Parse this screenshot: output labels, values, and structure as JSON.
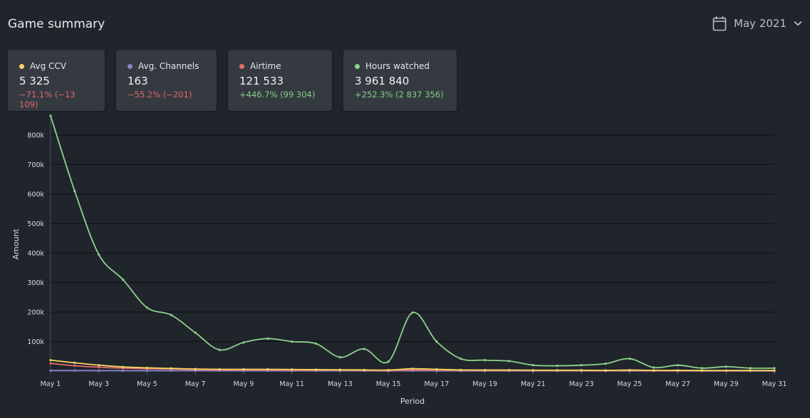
{
  "header": {
    "title": "Game summary",
    "period_label": "May 2021",
    "calendar_icon": "calendar-icon",
    "chevron_icon": "chevron-down-icon"
  },
  "cards": [
    {
      "label": "Avg CCV",
      "value": "5 325",
      "delta": "−71.1% (−13 109)",
      "color": "#f5d560",
      "trend": "neg"
    },
    {
      "label": "Avg. Channels",
      "value": "163",
      "delta": "−55.2% (−201)",
      "color": "#8c84cf",
      "trend": "neg"
    },
    {
      "label": "Airtime",
      "value": "121 533",
      "delta": "+446.7% (99 304)",
      "color": "#e66a6e",
      "trend": "pos"
    },
    {
      "label": "Hours watched",
      "value": "3 961 840",
      "delta": "+252.3% (2 837 356)",
      "color": "#8ed18b",
      "trend": "pos"
    }
  ],
  "chart_data": {
    "type": "line",
    "xlabel": "Period",
    "ylabel": "Amount",
    "ylim": [
      0,
      860000
    ],
    "y_ticks": [
      100000,
      200000,
      300000,
      400000,
      500000,
      600000,
      700000,
      800000
    ],
    "y_tick_labels": [
      "100k",
      "200k",
      "300k",
      "400k",
      "500k",
      "600k",
      "700k",
      "800k"
    ],
    "x": [
      "May 1",
      "May 2",
      "May 3",
      "May 4",
      "May 5",
      "May 6",
      "May 7",
      "May 8",
      "May 9",
      "May 10",
      "May 11",
      "May 12",
      "May 13",
      "May 14",
      "May 15",
      "May 16",
      "May 17",
      "May 18",
      "May 19",
      "May 20",
      "May 21",
      "May 22",
      "May 23",
      "May 24",
      "May 25",
      "May 26",
      "May 27",
      "May 28",
      "May 29",
      "May 30",
      "May 31"
    ],
    "x_tick_labels": [
      "May 1",
      "",
      "May 3",
      "",
      "May 5",
      "",
      "May 7",
      "",
      "May 9",
      "",
      "May 11",
      "",
      "May 13",
      "",
      "May 15",
      "",
      "May 17",
      "",
      "May 19",
      "",
      "May 21",
      "",
      "May 23",
      "",
      "May 25",
      "",
      "May 27",
      "",
      "May 29",
      "",
      "May 31"
    ],
    "grid": true,
    "series": [
      {
        "color": "#8ed18b",
        "values": [
          865000,
          610000,
          395000,
          310000,
          215000,
          190000,
          130000,
          72000,
          97000,
          110000,
          100000,
          93000,
          47000,
          75000,
          32000,
          198000,
          100000,
          42000,
          37000,
          34000,
          20000,
          18000,
          20000,
          25000,
          42000,
          12000,
          20000,
          10000,
          15000,
          10000,
          10000
        ]
      },
      {
        "color": "#f5d560",
        "values": [
          37000,
          28000,
          20000,
          14000,
          11000,
          9000,
          7000,
          6000,
          6000,
          6000,
          5500,
          5000,
          4500,
          4000,
          3500,
          8000,
          6000,
          4000,
          3500,
          3500,
          3000,
          3000,
          3000,
          2500,
          3500,
          2500,
          2500,
          2000,
          2000,
          2000,
          2000
        ]
      },
      {
        "color": "#e66a6e",
        "values": [
          26000,
          18000,
          13000,
          10000,
          8000,
          7000,
          5000,
          4000,
          4000,
          4000,
          3500,
          3000,
          3000,
          2500,
          2000,
          4000,
          3500,
          2500,
          2000,
          2000,
          2000,
          1500,
          1500,
          1000,
          2000,
          1000,
          1000,
          1000,
          1000,
          1000,
          1000
        ]
      },
      {
        "color": "#8c84cf",
        "values": [
          2000,
          1800,
          1600,
          1500,
          1400,
          1300,
          1200,
          1100,
          1100,
          1000,
          1000,
          1000,
          900,
          900,
          800,
          1000,
          900,
          800,
          800,
          700,
          700,
          700,
          600,
          600,
          700,
          600,
          600,
          500,
          500,
          500,
          500
        ]
      }
    ]
  }
}
